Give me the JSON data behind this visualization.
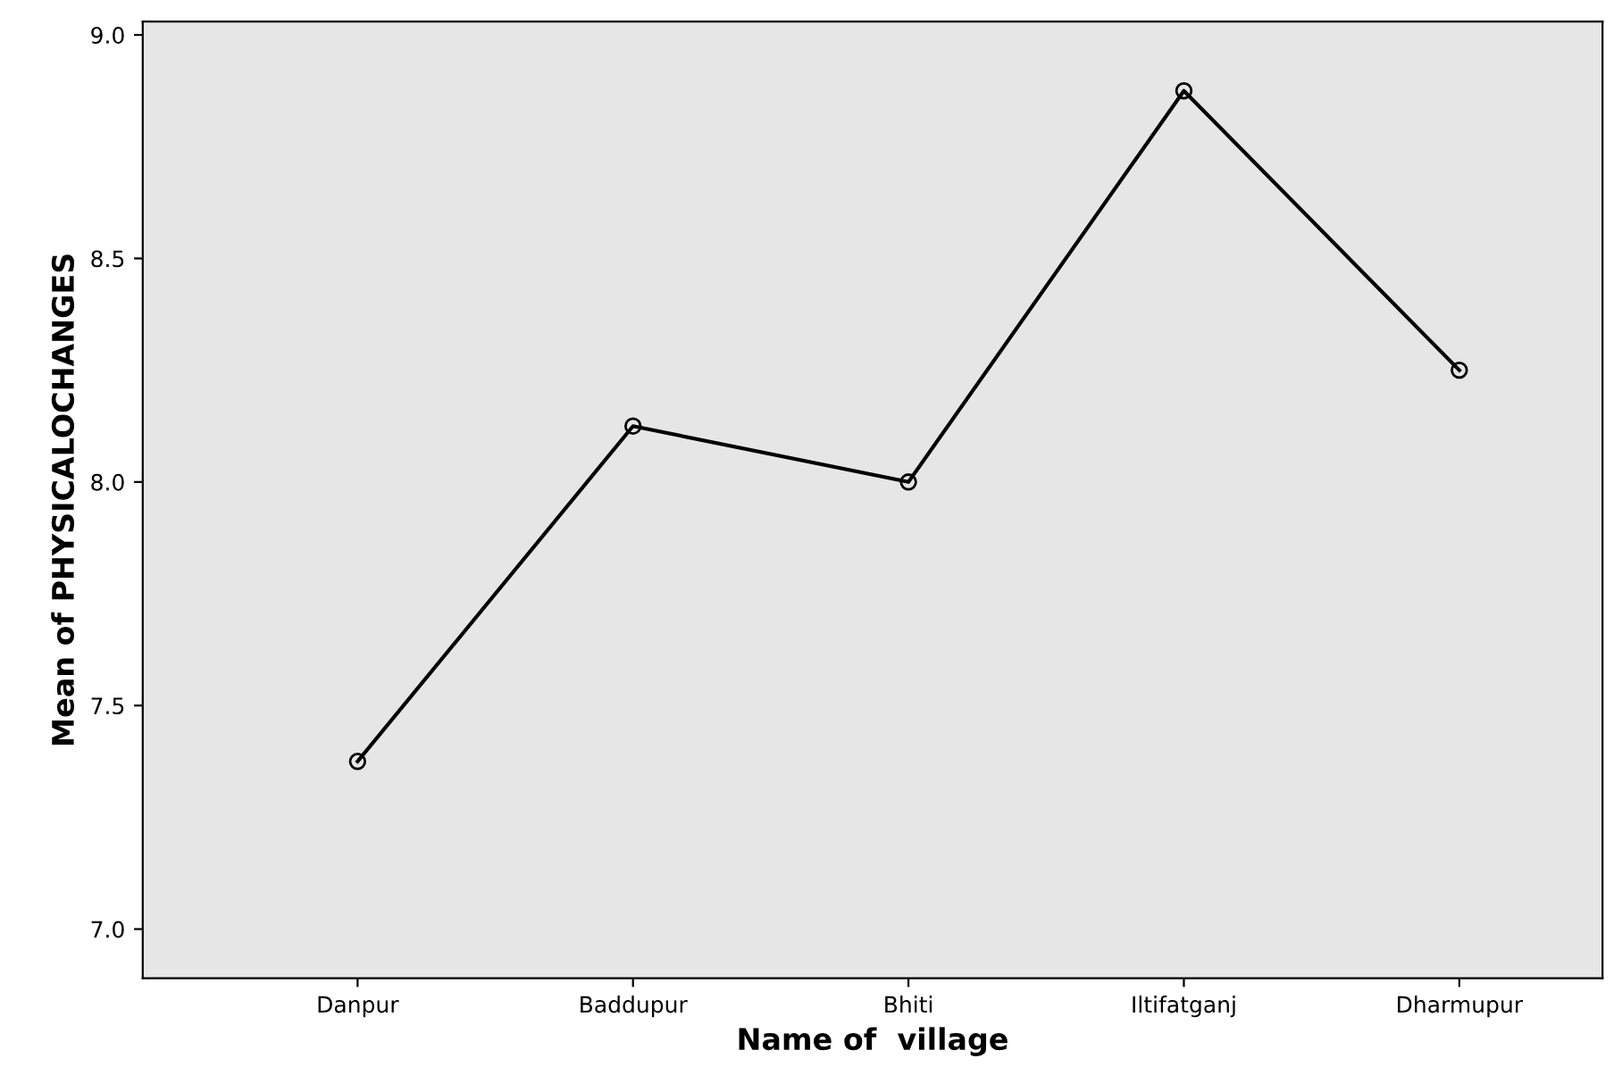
{
  "chart_data": {
    "type": "line",
    "xlabel": "Name of  village",
    "ylabel": "Mean of PHYSICALOCHANGES",
    "categories": [
      "Danpur",
      "Baddupur",
      "Bhiti",
      "Iltifatganj",
      "Dharmupur"
    ],
    "series": [
      {
        "color": "#000000",
        "values": [
          7.375,
          8.125,
          8.0,
          8.875,
          8.25
        ]
      }
    ],
    "ylim": [
      6.89,
      9.03
    ],
    "yticks": [
      {
        "value": 7.0,
        "label": "7.0"
      },
      {
        "value": 7.5,
        "label": "7.5"
      },
      {
        "value": 8.0,
        "label": "8.0"
      },
      {
        "value": 8.5,
        "label": "8.5"
      },
      {
        "value": 9.0,
        "label": "9.0"
      }
    ],
    "marker": "circle",
    "line_style": "solid",
    "grid": false,
    "legend": false
  }
}
